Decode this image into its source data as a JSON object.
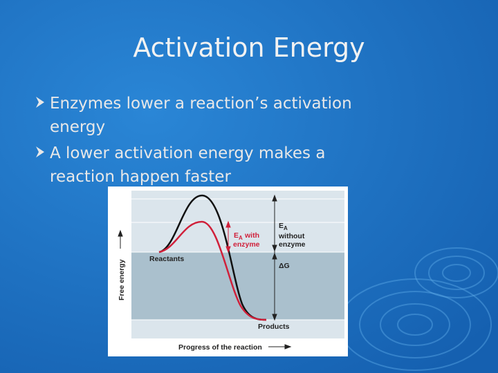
{
  "slide": {
    "title": "Activation Energy",
    "bullets": [
      {
        "lines": [
          "Enzymes lower a reaction’s activation",
          "energy"
        ]
      },
      {
        "lines": [
          "A lower activation energy makes a",
          "reaction happen faster"
        ]
      }
    ],
    "figure": {
      "y_axis_label": "Free energy",
      "x_axis_label": "Progress of the reaction",
      "reactants": "Reactants",
      "products": "Products",
      "ea_without": {
        "symbol": "E",
        "subscript": "A",
        "lines": [
          "without",
          "enzyme"
        ]
      },
      "ea_with": {
        "symbol": "E",
        "subscript": "A",
        "lines": [
          "with",
          "enzyme"
        ]
      },
      "delta_g": "ΔG"
    }
  }
}
